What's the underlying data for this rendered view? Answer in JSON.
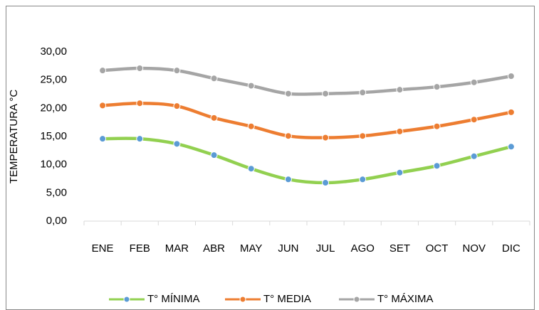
{
  "chart_data": {
    "type": "line",
    "y_label": "TEMPERATURA °C",
    "categories": [
      "ENE",
      "FEB",
      "MAR",
      "ABR",
      "MAY",
      "JUN",
      "JUL",
      "AGO",
      "SET",
      "OCT",
      "NOV",
      "DIC"
    ],
    "series": [
      {
        "name": "T° MÍNIMA",
        "color": "#92d050",
        "marker_color": "#5b9bd5",
        "values": [
          14.6,
          14.6,
          13.7,
          11.7,
          9.3,
          7.4,
          6.8,
          7.4,
          8.6,
          9.8,
          11.5,
          13.2
        ]
      },
      {
        "name": "T° MEDIA",
        "color": "#ed7d31",
        "marker_color": "#ed7d31",
        "values": [
          20.5,
          20.9,
          20.4,
          18.3,
          16.8,
          15.1,
          14.8,
          15.1,
          15.9,
          16.8,
          18.0,
          19.3
        ]
      },
      {
        "name": "T° MÁXIMA",
        "color": "#a5a5a5",
        "marker_color": "#a5a5a5",
        "values": [
          26.7,
          27.1,
          26.7,
          25.3,
          24.0,
          22.6,
          22.6,
          22.8,
          23.3,
          23.8,
          24.6,
          25.7
        ]
      }
    ],
    "ylim": [
      0,
      30
    ],
    "yticks": [
      {
        "value": 0,
        "label": "0,00"
      },
      {
        "value": 5,
        "label": "5,00"
      },
      {
        "value": 10,
        "label": "10,00"
      },
      {
        "value": 15,
        "label": "15,00"
      },
      {
        "value": 20,
        "label": "20,00"
      },
      {
        "value": 25,
        "label": "25,00"
      },
      {
        "value": 30,
        "label": "30,00"
      }
    ],
    "grid": false,
    "legend": "bottom"
  }
}
